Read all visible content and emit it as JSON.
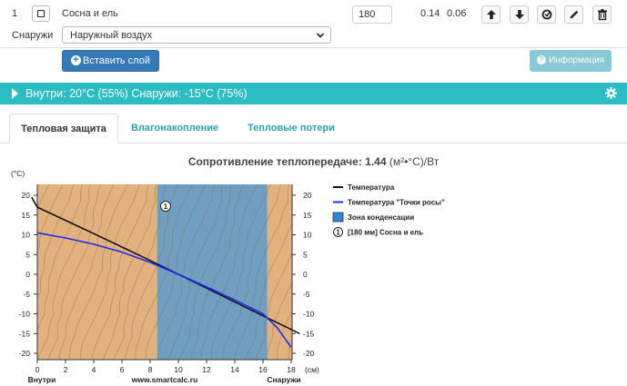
{
  "layer": {
    "number": "1",
    "material": "Сосна и ель",
    "thickness": "180",
    "lambda": "0.14",
    "mu": "0.06",
    "buttons": [
      "arrow-up-icon",
      "arrow-down-icon",
      "refresh-icon",
      "edit-icon",
      "trash-icon"
    ]
  },
  "outside": {
    "label": "Снаружи",
    "selected": "Наружный воздух"
  },
  "actions": {
    "insert_label": "Вставить слой",
    "info_label": "Информация"
  },
  "conditions_bar": {
    "text": "Внутри: 20°C (55%) Снаружи: -15°C (75%)",
    "color": "#2bbcc4"
  },
  "tabs": [
    {
      "label": "Тепловая защита",
      "active": true
    },
    {
      "label": "Влагонакопление",
      "active": false
    },
    {
      "label": "Тепловые потери",
      "active": false
    }
  ],
  "chart_title": "Сопротивление теплопередаче: 1.44",
  "chart_title_unit": "(м²•°C)/Вт",
  "chart_data": {
    "type": "line",
    "ylabel": "(°C)",
    "xlabel": "(см)",
    "xlim": [
      0,
      18
    ],
    "ylim": [
      -20,
      20
    ],
    "x_ticks": [
      "0",
      "2",
      "4",
      "6",
      "8",
      "10",
      "12",
      "14",
      "16",
      "18"
    ],
    "y_ticks": [
      "20",
      "15",
      "10",
      "5",
      "0",
      "-5",
      "-10",
      "-15",
      "-20"
    ],
    "left_label": "Внутри",
    "center_label": "www.smartcalc.ru",
    "right_label": "Снаружи",
    "layer_marker": "1",
    "condensation_zone": [
      8.5,
      16.3
    ],
    "series": [
      {
        "name": "Температура",
        "color": "#111111",
        "x": [
          -0.4,
          0,
          4,
          8,
          12,
          16,
          18.6
        ],
        "y": [
          19.5,
          17,
          10.3,
          3.5,
          -3.5,
          -10.5,
          -15
        ]
      },
      {
        "name": "Температура \"Точки росы\"",
        "color": "#1a2cf0",
        "x": [
          0,
          2,
          4,
          6,
          8,
          10,
          12,
          14,
          16,
          17,
          18
        ],
        "y": [
          10.5,
          9.2,
          7.6,
          5.6,
          3.0,
          0.0,
          -3.2,
          -6.5,
          -10.0,
          -13.5,
          -18.5
        ]
      }
    ],
    "legend": [
      {
        "label": "Температура",
        "kind": "line",
        "color": "#111111"
      },
      {
        "label": "Температура \"Точки росы\"",
        "kind": "line",
        "color": "#1a2cf0"
      },
      {
        "label": "Зона конденсации",
        "kind": "box",
        "color": "#2f86d6"
      },
      {
        "label": "[180 мм] Сосна и ель",
        "kind": "marker",
        "marker": "1"
      }
    ],
    "colors": {
      "wood": "#e2b27e",
      "condensation": "#6f9ec0",
      "grain": "#8a6a45"
    }
  }
}
